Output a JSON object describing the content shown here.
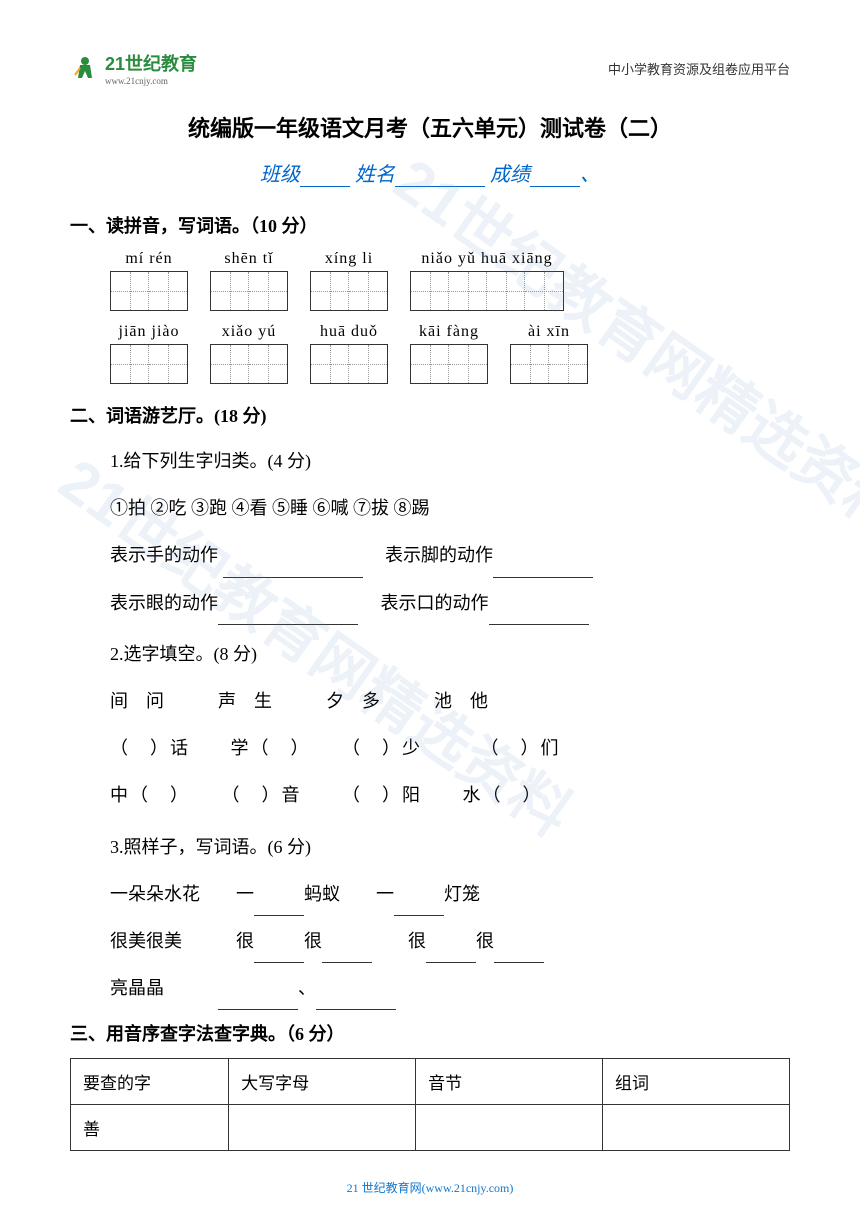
{
  "header": {
    "logo_main": "21世纪教育",
    "logo_url": "www.21cnjy.com",
    "right_text": "中小学教育资源及组卷应用平台"
  },
  "title": "统编版一年级语文月考（五六单元）测试卷（二）",
  "student_info": {
    "class_label": "班级",
    "name_label": "姓名",
    "score_label": "成绩"
  },
  "section1": {
    "title": "一、读拼音，写词语。（10 分）",
    "row1": [
      {
        "pinyin": "mí rén",
        "boxes": 2
      },
      {
        "pinyin": "shēn tǐ",
        "boxes": 2
      },
      {
        "pinyin": "xíng li",
        "boxes": 2
      },
      {
        "pinyin": "niǎo yǔ huā xiāng",
        "boxes": 4
      }
    ],
    "row2": [
      {
        "pinyin": "jiān jiào",
        "boxes": 2
      },
      {
        "pinyin": "xiǎo yú",
        "boxes": 2
      },
      {
        "pinyin": "huā duǒ",
        "boxes": 2
      },
      {
        "pinyin": "kāi fàng",
        "boxes": 2
      },
      {
        "pinyin": "ài xīn",
        "boxes": 2
      }
    ]
  },
  "section2": {
    "title": "二、词语游艺厅。(18 分)",
    "sub1": {
      "title": "1.给下列生字归类。(4 分)",
      "chars": "①拍 ②吃 ③跑 ④看 ⑤睡 ⑥喊 ⑦拔 ⑧踢",
      "line1a": "表示手的动作",
      "line1b": "表示脚的动作",
      "line2a": "表示眼的动作",
      "line2b": "表示口的动作"
    },
    "sub2": {
      "title": "2.选字填空。(8 分)",
      "choices": "间　问　　　声　生　　　夕　多　　　池　他",
      "r1_1": "（　）话",
      "r1_2": "学（　）",
      "r1_3": "（　）少",
      "r1_4": "（　）们",
      "r2_1": "中（　）",
      "r2_2": "（　）音",
      "r2_3": "（　）阳",
      "r2_4": "水（　）"
    },
    "sub3": {
      "title": "3.照样子，写词语。(6 分)",
      "ex1": "一朵朵水花",
      "ex1_a": "蚂蚁",
      "ex1_b": "灯笼",
      "ex2": "很美很美",
      "ex2_mid1": "很",
      "ex2_mid2": "很",
      "ex3": "亮晶晶"
    }
  },
  "section3": {
    "title": "三、用音序查字法查字典。（6 分）",
    "headers": [
      "要查的字",
      "大写字母",
      "音节",
      "组词"
    ],
    "rows": [
      [
        "善",
        "",
        "",
        ""
      ]
    ]
  },
  "footer": "21 世纪教育网(www.21cnjy.com)",
  "watermark": "21世纪教育网精选资料",
  "colors": {
    "logo_green": "#2a8c3e",
    "link_blue": "#0066cc",
    "text": "#333333"
  }
}
